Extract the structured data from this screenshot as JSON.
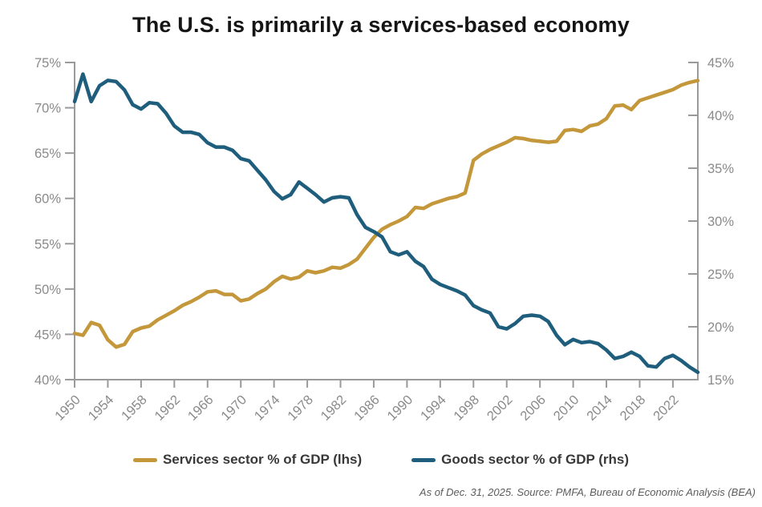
{
  "title": "The U.S. is primarily a services-based economy",
  "footnote": "As of Dec. 31, 2025. Source: PMFA, Bureau of Economic Analysis (BEA)",
  "legend": {
    "items": [
      {
        "label": "Services sector % of GDP (lhs)",
        "color": "#C4973A"
      },
      {
        "label": "Goods sector % of GDP (rhs)",
        "color": "#1E5E7C"
      }
    ]
  },
  "colors": {
    "services_line": "#C4973A",
    "goods_line": "#1E5E7C",
    "axis": "#9a9a9a",
    "tick_label": "#8a8a8a",
    "title_text": "#151515"
  },
  "chart_data": {
    "type": "line",
    "title": "The U.S. is primarily a services-based economy",
    "xlabel": "",
    "ylabel_left": "Services sector % of GDP",
    "ylabel_right": "Goods sector % of GDP",
    "grid": false,
    "legend_position": "bottom",
    "x_start_year": 1950,
    "x_end_year": 2025,
    "x_tick_years": [
      1950,
      1954,
      1958,
      1962,
      1966,
      1970,
      1974,
      1978,
      1982,
      1986,
      1990,
      1994,
      1998,
      2002,
      2006,
      2010,
      2014,
      2018,
      2022
    ],
    "left_axis": {
      "min": 40,
      "max": 75,
      "tick_values": [
        75,
        70,
        65,
        60,
        55,
        50,
        45,
        40
      ],
      "tick_labels": [
        "75%",
        "70%",
        "65%",
        "60%",
        "55%",
        "50%",
        "45%",
        "40%"
      ]
    },
    "right_axis": {
      "min": 15,
      "max": 45,
      "tick_values": [
        45,
        40,
        35,
        30,
        25,
        20,
        15
      ],
      "tick_labels": [
        "45%",
        "40%",
        "35%",
        "30%",
        "25%",
        "20%",
        "15%"
      ]
    },
    "x": [
      1950,
      1951,
      1952,
      1953,
      1954,
      1955,
      1956,
      1957,
      1958,
      1959,
      1960,
      1961,
      1962,
      1963,
      1964,
      1965,
      1966,
      1967,
      1968,
      1969,
      1970,
      1971,
      1972,
      1973,
      1974,
      1975,
      1976,
      1977,
      1978,
      1979,
      1980,
      1981,
      1982,
      1983,
      1984,
      1985,
      1986,
      1987,
      1988,
      1989,
      1990,
      1991,
      1992,
      1993,
      1994,
      1995,
      1996,
      1997,
      1998,
      1999,
      2000,
      2001,
      2002,
      2003,
      2004,
      2005,
      2006,
      2007,
      2008,
      2009,
      2010,
      2011,
      2012,
      2013,
      2014,
      2015,
      2016,
      2017,
      2018,
      2019,
      2020,
      2021,
      2022,
      2023,
      2024,
      2025
    ],
    "series": [
      {
        "name": "Services sector % of GDP (lhs)",
        "axis": "left",
        "color": "#C4973A",
        "values": [
          45.1,
          44.9,
          46.3,
          46.0,
          44.4,
          43.6,
          43.9,
          45.3,
          45.7,
          45.9,
          46.6,
          47.1,
          47.6,
          48.2,
          48.6,
          49.1,
          49.7,
          49.8,
          49.4,
          49.4,
          48.7,
          48.9,
          49.5,
          50.0,
          50.8,
          51.4,
          51.1,
          51.3,
          52.0,
          51.8,
          52.0,
          52.4,
          52.3,
          52.7,
          53.3,
          54.5,
          55.7,
          56.6,
          57.1,
          57.5,
          58.0,
          59.0,
          58.9,
          59.4,
          59.7,
          60.0,
          60.2,
          60.6,
          64.2,
          64.9,
          65.4,
          65.8,
          66.2,
          66.7,
          66.6,
          66.4,
          66.3,
          66.2,
          66.3,
          67.5,
          67.6,
          67.4,
          68.0,
          68.2,
          68.8,
          70.2,
          70.3,
          69.8,
          70.8,
          71.1,
          71.4,
          71.7,
          72.0,
          72.5,
          72.8,
          73.0
        ]
      },
      {
        "name": "Goods sector % of GDP (rhs)",
        "axis": "right",
        "color": "#1E5E7C",
        "values": [
          41.3,
          43.9,
          41.3,
          42.8,
          43.3,
          43.2,
          42.4,
          41.0,
          40.6,
          41.2,
          41.1,
          40.2,
          39.0,
          38.4,
          38.4,
          38.2,
          37.4,
          37.0,
          37.0,
          36.7,
          35.9,
          35.7,
          34.8,
          33.9,
          32.8,
          32.1,
          32.5,
          33.7,
          33.1,
          32.5,
          31.8,
          32.2,
          32.3,
          32.2,
          30.6,
          29.4,
          29.0,
          28.5,
          27.1,
          26.8,
          27.1,
          26.2,
          25.7,
          24.5,
          24.0,
          23.7,
          23.4,
          23.0,
          22.0,
          21.6,
          21.3,
          20.0,
          19.8,
          20.3,
          21.0,
          21.1,
          21.0,
          20.5,
          19.2,
          18.3,
          18.8,
          18.5,
          18.6,
          18.4,
          17.8,
          17.0,
          17.2,
          17.6,
          17.2,
          16.3,
          16.2,
          17.0,
          17.3,
          16.8,
          16.2,
          15.7
        ]
      }
    ]
  }
}
